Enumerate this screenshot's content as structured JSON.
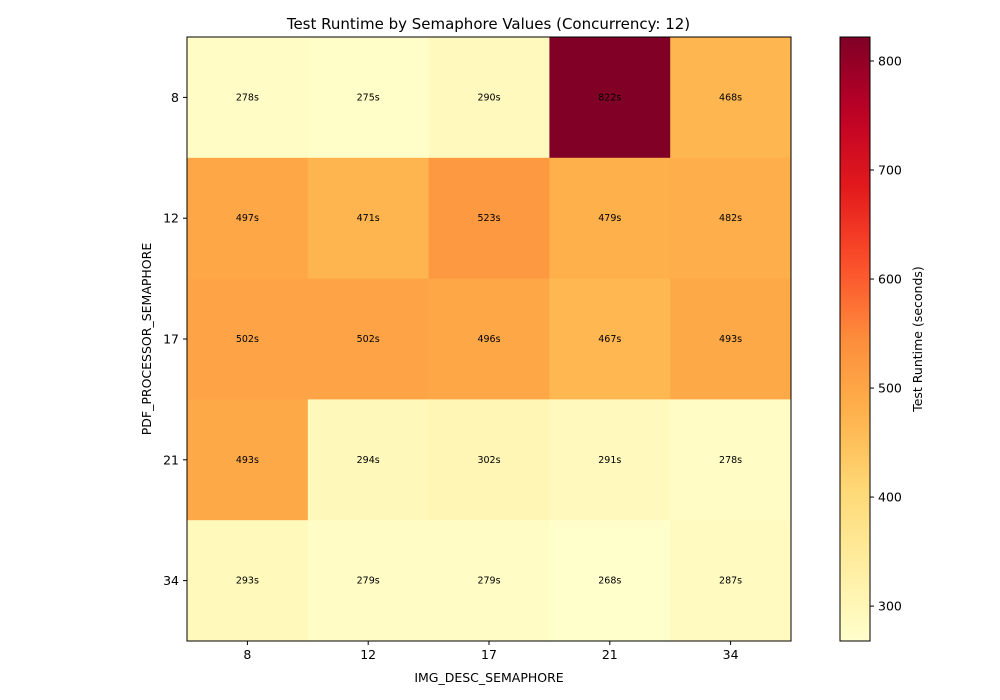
{
  "chart_data": {
    "type": "heatmap",
    "title": "Test Runtime by Semaphore Values (Concurrency: 12)",
    "xlabel": "IMG_DESC_SEMAPHORE",
    "ylabel": "PDF_PROCESSOR_SEMAPHORE",
    "x_categories": [
      "8",
      "12",
      "17",
      "21",
      "34"
    ],
    "y_categories": [
      "8",
      "12",
      "17",
      "21",
      "34"
    ],
    "values": [
      [
        278,
        275,
        290,
        822,
        468
      ],
      [
        497,
        471,
        523,
        479,
        482
      ],
      [
        502,
        502,
        496,
        467,
        493
      ],
      [
        493,
        294,
        302,
        291,
        278
      ],
      [
        293,
        279,
        279,
        268,
        287
      ]
    ],
    "value_suffix": "s",
    "colormap": "YlOrRd",
    "colorbar": {
      "label": "Test Runtime (seconds)",
      "range": [
        268,
        822
      ],
      "ticks": [
        300,
        400,
        500,
        600,
        700,
        800
      ]
    }
  }
}
